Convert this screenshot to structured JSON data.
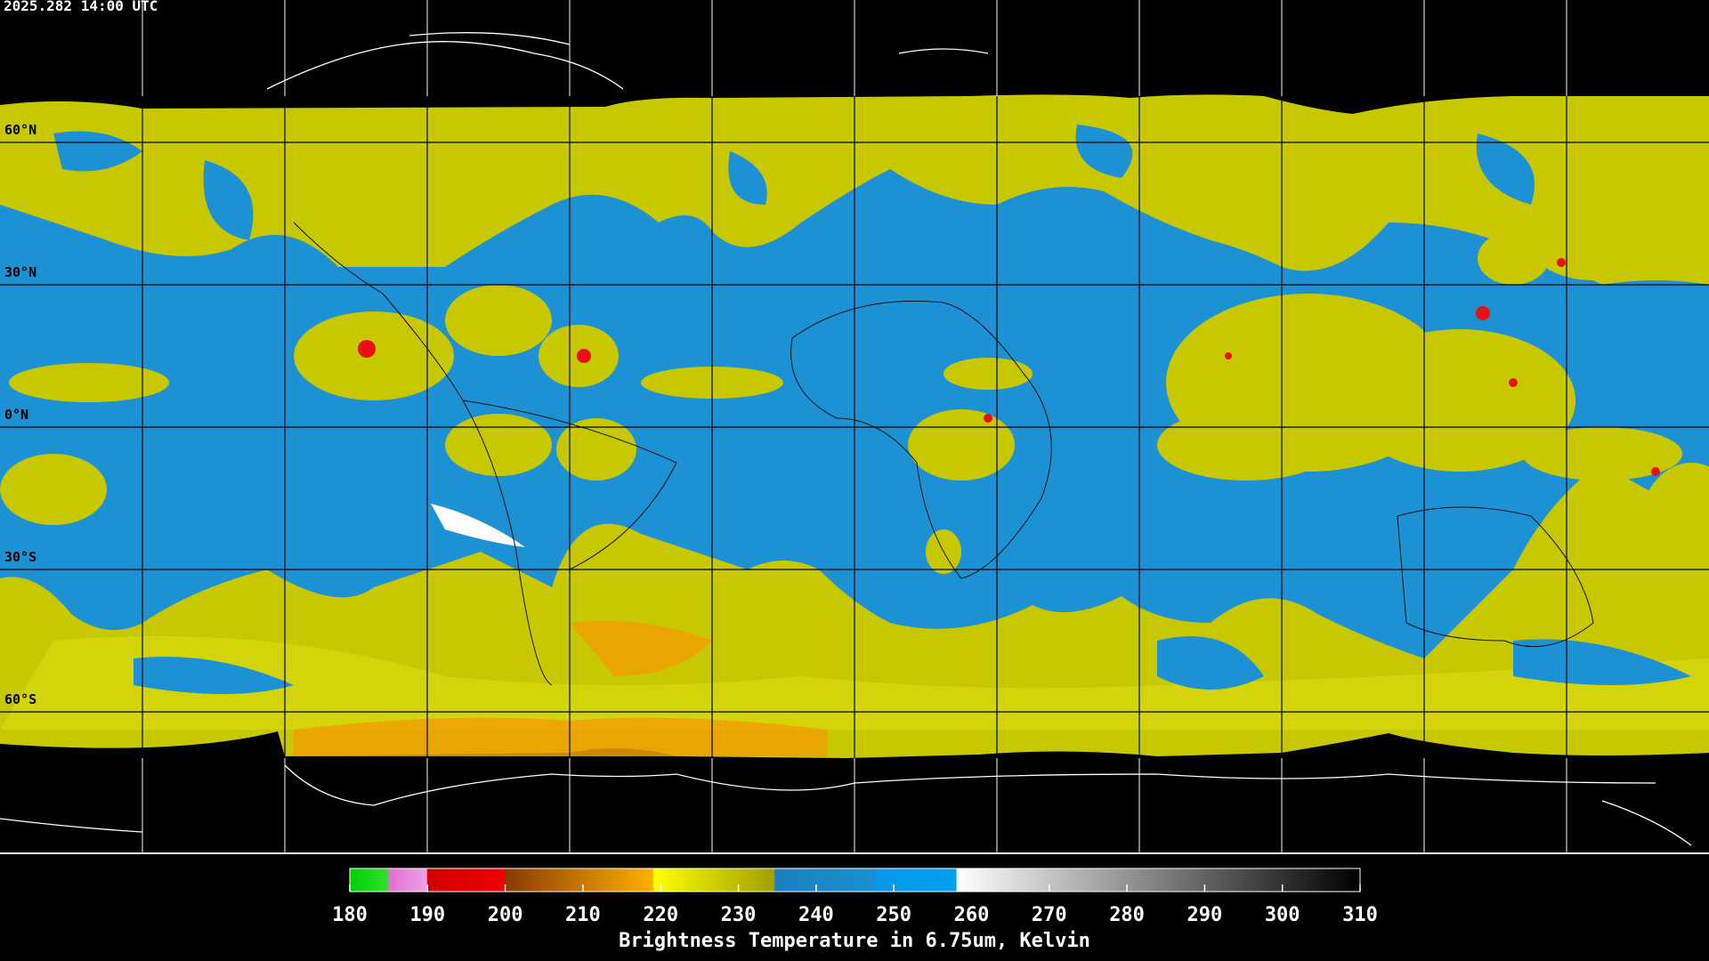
{
  "timestamp": "2025.282 14:00 UTC",
  "latitude_labels": [
    "60°N",
    "30°N",
    "0°N",
    "30°S",
    "60°S"
  ],
  "colorbar": {
    "range": [
      180,
      310
    ],
    "ticks": [
      180,
      190,
      200,
      210,
      220,
      230,
      240,
      250,
      260,
      270,
      280,
      290,
      300,
      310
    ],
    "label": "Brightness Temperature in 6.75um, Kelvin"
  }
}
